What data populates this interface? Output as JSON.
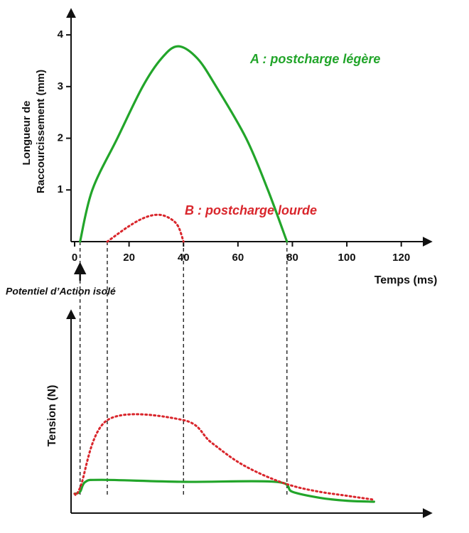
{
  "chart_data": [
    {
      "type": "line",
      "ylabel": [
        "Longueur de",
        "Raccourcissement (mm)"
      ],
      "xlabel": "Temps (ms)",
      "xlim": [
        0,
        130
      ],
      "xticks": [
        0,
        20,
        40,
        60,
        80,
        100,
        120
      ],
      "ylim": [
        0,
        4.4
      ],
      "yticks": [
        1,
        2,
        3,
        4
      ],
      "vlines": [
        2,
        12,
        40,
        78
      ],
      "annotation": "Potentiel d’Action isolé",
      "series": [
        {
          "name": "A : postcharge légère",
          "color": "#22a52a",
          "style": "solid",
          "x": [
            2,
            6.5,
            15.7,
            25,
            32,
            38,
            45,
            52,
            63,
            71,
            78
          ],
          "values": [
            0,
            1,
            2,
            3,
            3.55,
            3.78,
            3.55,
            3,
            2,
            1,
            0
          ]
        },
        {
          "name": "B : postcharge lourde",
          "color": "#d9262c",
          "style": "dotted",
          "x": [
            12,
            20,
            26,
            31,
            35,
            38,
            40
          ],
          "values": [
            0,
            0.3,
            0.47,
            0.52,
            0.45,
            0.3,
            0
          ]
        }
      ]
    },
    {
      "type": "line",
      "ylabel": "Tension (N)",
      "xlim": [
        0,
        130
      ],
      "ylim": [
        0,
        10
      ],
      "series": [
        {
          "name": "A : postcharge légère",
          "color": "#22a52a",
          "style": "solid",
          "x": [
            0,
            2,
            4,
            10,
            40,
            74,
            80,
            90,
            100,
            110
          ],
          "values": [
            0.9,
            1.0,
            1.5,
            1.6,
            1.5,
            1.5,
            1.0,
            0.7,
            0.55,
            0.5
          ]
        },
        {
          "name": "B : postcharge lourde",
          "color": "#d9262c",
          "style": "dotted",
          "x": [
            0,
            2,
            12,
            40,
            50,
            60,
            70,
            80,
            90,
            100,
            110
          ],
          "values": [
            0.9,
            1.2,
            4.6,
            4.6,
            3.5,
            2.5,
            1.8,
            1.3,
            1.0,
            0.8,
            0.6
          ]
        }
      ]
    }
  ]
}
